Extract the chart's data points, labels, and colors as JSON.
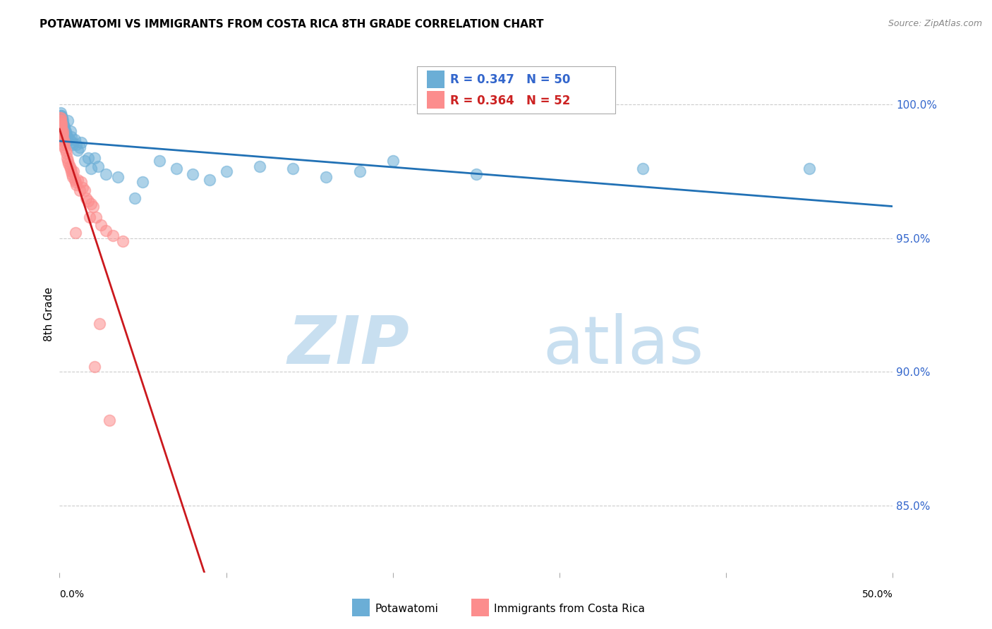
{
  "title": "POTAWATOMI VS IMMIGRANTS FROM COSTA RICA 8TH GRADE CORRELATION CHART",
  "source": "Source: ZipAtlas.com",
  "ylabel": "8th Grade",
  "ylabel_right_ticks": [
    85.0,
    90.0,
    95.0,
    100.0
  ],
  "ylabel_right_labels": [
    "85.0%",
    "90.0%",
    "95.0%",
    "100.0%"
  ],
  "x_min": 0.0,
  "x_max": 50.0,
  "y_min": 82.5,
  "y_max": 101.8,
  "legend_blue_r": "R = 0.347",
  "legend_blue_n": "N = 50",
  "legend_pink_r": "R = 0.364",
  "legend_pink_n": "N = 52",
  "legend_label_blue": "Potawatomi",
  "legend_label_pink": "Immigrants from Costa Rica",
  "watermark_zip": "ZIP",
  "watermark_atlas": "atlas",
  "watermark_color_zip": "#c8dff0",
  "watermark_color_atlas": "#c8dff0",
  "blue_color": "#6baed6",
  "pink_color": "#fc8d8d",
  "trendline_blue_color": "#2171b5",
  "trendline_pink_color": "#cb181d",
  "title_fontsize": 11,
  "source_fontsize": 9,
  "blue_points": [
    [
      0.05,
      99.6
    ],
    [
      0.07,
      99.5
    ],
    [
      0.08,
      99.7
    ],
    [
      0.1,
      99.5
    ],
    [
      0.12,
      99.4
    ],
    [
      0.13,
      99.6
    ],
    [
      0.15,
      99.5
    ],
    [
      0.17,
      99.3
    ],
    [
      0.18,
      99.4
    ],
    [
      0.2,
      99.3
    ],
    [
      0.22,
      99.2
    ],
    [
      0.25,
      99.0
    ],
    [
      0.28,
      99.1
    ],
    [
      0.3,
      99.2
    ],
    [
      0.35,
      99.0
    ],
    [
      0.4,
      98.9
    ],
    [
      0.45,
      98.8
    ],
    [
      0.5,
      99.4
    ],
    [
      0.6,
      98.7
    ],
    [
      0.65,
      99.0
    ],
    [
      0.7,
      98.8
    ],
    [
      0.75,
      98.6
    ],
    [
      0.8,
      98.5
    ],
    [
      0.9,
      98.7
    ],
    [
      1.0,
      98.5
    ],
    [
      1.1,
      98.3
    ],
    [
      1.2,
      98.4
    ],
    [
      1.3,
      98.6
    ],
    [
      1.5,
      97.9
    ],
    [
      1.7,
      98.0
    ],
    [
      1.9,
      97.6
    ],
    [
      2.1,
      98.0
    ],
    [
      2.3,
      97.7
    ],
    [
      2.8,
      97.4
    ],
    [
      3.5,
      97.3
    ],
    [
      4.5,
      96.5
    ],
    [
      5.0,
      97.1
    ],
    [
      6.0,
      97.9
    ],
    [
      7.0,
      97.6
    ],
    [
      8.0,
      97.4
    ],
    [
      9.0,
      97.2
    ],
    [
      10.0,
      97.5
    ],
    [
      12.0,
      97.7
    ],
    [
      14.0,
      97.6
    ],
    [
      16.0,
      97.3
    ],
    [
      18.0,
      97.5
    ],
    [
      20.0,
      97.9
    ],
    [
      25.0,
      97.4
    ],
    [
      35.0,
      97.6
    ],
    [
      45.0,
      97.6
    ]
  ],
  "pink_points": [
    [
      0.02,
      99.5
    ],
    [
      0.04,
      99.4
    ],
    [
      0.06,
      99.5
    ],
    [
      0.07,
      99.3
    ],
    [
      0.08,
      99.4
    ],
    [
      0.09,
      99.2
    ],
    [
      0.1,
      99.3
    ],
    [
      0.11,
      99.1
    ],
    [
      0.12,
      99.0
    ],
    [
      0.13,
      99.2
    ],
    [
      0.14,
      98.9
    ],
    [
      0.15,
      98.8
    ],
    [
      0.16,
      98.7
    ],
    [
      0.18,
      99.0
    ],
    [
      0.2,
      98.9
    ],
    [
      0.22,
      98.7
    ],
    [
      0.25,
      98.5
    ],
    [
      0.28,
      98.6
    ],
    [
      0.3,
      98.4
    ],
    [
      0.35,
      98.3
    ],
    [
      0.4,
      98.2
    ],
    [
      0.45,
      98.0
    ],
    [
      0.5,
      97.9
    ],
    [
      0.55,
      97.8
    ],
    [
      0.6,
      97.7
    ],
    [
      0.65,
      97.6
    ],
    [
      0.7,
      97.5
    ],
    [
      0.75,
      97.4
    ],
    [
      0.8,
      97.3
    ],
    [
      0.85,
      97.5
    ],
    [
      0.9,
      97.2
    ],
    [
      0.95,
      97.1
    ],
    [
      1.0,
      97.0
    ],
    [
      1.1,
      97.2
    ],
    [
      1.2,
      96.8
    ],
    [
      1.3,
      97.1
    ],
    [
      1.4,
      96.9
    ],
    [
      1.5,
      96.8
    ],
    [
      1.6,
      96.5
    ],
    [
      1.7,
      96.4
    ],
    [
      1.8,
      95.8
    ],
    [
      1.9,
      96.3
    ],
    [
      2.0,
      96.2
    ],
    [
      2.2,
      95.8
    ],
    [
      2.5,
      95.5
    ],
    [
      2.8,
      95.3
    ],
    [
      3.2,
      95.1
    ],
    [
      3.8,
      94.9
    ],
    [
      0.95,
      95.2
    ],
    [
      2.1,
      90.2
    ],
    [
      3.0,
      88.2
    ],
    [
      2.4,
      91.8
    ]
  ]
}
